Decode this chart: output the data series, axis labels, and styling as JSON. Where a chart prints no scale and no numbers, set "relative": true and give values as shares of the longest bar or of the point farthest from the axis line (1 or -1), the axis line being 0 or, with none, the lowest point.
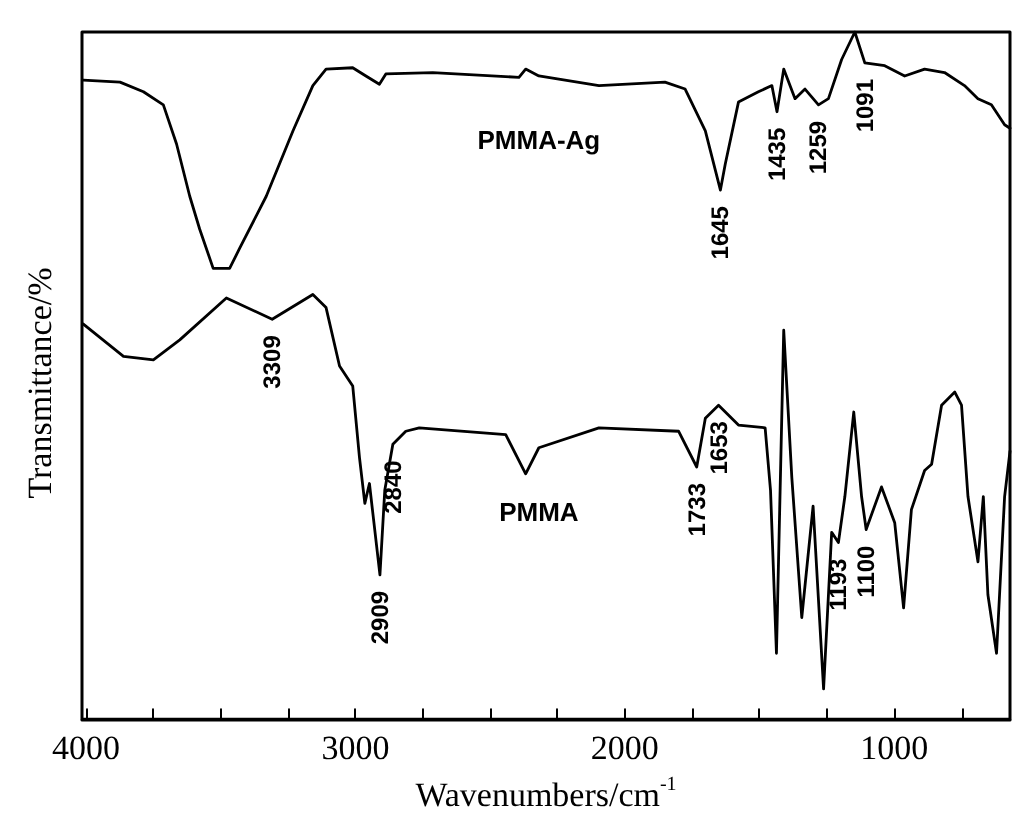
{
  "chart_data": {
    "type": "line",
    "relative": true,
    "xlabel": "Wavenumbers/cm$^{-1}$",
    "ylabel": "Transmittance/%",
    "xlim": [
      4015,
      570
    ],
    "xticks": [
      4000,
      {
        "value": 3750,
        "label": null
      },
      {
        "value": 3500,
        "label": null
      },
      {
        "value": 3250,
        "label": null
      },
      3000,
      {
        "value": 2750,
        "label": null
      },
      {
        "value": 2500,
        "label": null
      },
      {
        "value": 2250,
        "label": null
      },
      2000,
      {
        "value": 1750,
        "label": null
      },
      {
        "value": 1500,
        "label": null
      },
      {
        "value": 1250,
        "label": null
      },
      1000,
      {
        "value": 750,
        "label": null
      }
    ],
    "grid": false,
    "legend": false,
    "marker": "none",
    "line_style": "solid",
    "series": [
      {
        "name": "PMMA-Ag",
        "color": "#000000",
        "x": [
          4010,
          3874,
          3787,
          3713,
          3664,
          3615,
          3578,
          3528,
          3467,
          3430,
          3331,
          3232,
          3158,
          3109,
          3010,
          2961,
          2911,
          2887,
          2713,
          2393,
          2368,
          2319,
          2096,
          1851,
          1776,
          1701,
          1645,
          1627,
          1578,
          1504,
          1454,
          1435,
          1410,
          1368,
          1331,
          1281,
          1244,
          1195,
          1146,
          1109,
          1035,
          961,
          887,
          813,
          739,
          689,
          639,
          590,
          570
        ],
        "values": [
          0.93,
          0.927,
          0.913,
          0.894,
          0.837,
          0.761,
          0.713,
          0.656,
          0.656,
          0.685,
          0.761,
          0.856,
          0.922,
          0.946,
          0.948,
          0.936,
          0.924,
          0.939,
          0.941,
          0.934,
          0.946,
          0.936,
          0.922,
          0.927,
          0.917,
          0.856,
          0.77,
          0.808,
          0.898,
          0.913,
          0.922,
          0.884,
          0.946,
          0.903,
          0.917,
          0.894,
          0.903,
          0.96,
          1.0,
          0.955,
          0.951,
          0.936,
          0.946,
          0.941,
          0.922,
          0.903,
          0.894,
          0.865,
          0.86
        ]
      },
      {
        "name": "PMMA",
        "color": "#000000",
        "x": [
          4010,
          3861,
          3750,
          3652,
          3479,
          3309,
          3158,
          3109,
          3059,
          3010,
          2985,
          2965,
          2948,
          2909,
          2891,
          2861,
          2813,
          2763,
          2442,
          2368,
          2319,
          2096,
          1800,
          1733,
          1701,
          1652,
          1578,
          1479,
          1459,
          1437,
          1410,
          1380,
          1343,
          1301,
          1262,
          1232,
          1207,
          1183,
          1150,
          1121,
          1104,
          1047,
          998,
          965,
          936,
          887,
          861,
          824,
          775,
          750,
          726,
          689,
          669,
          652,
          620,
          590,
          570
        ],
        "values": [
          0.575,
          0.528,
          0.523,
          0.552,
          0.613,
          0.582,
          0.618,
          0.599,
          0.514,
          0.485,
          0.381,
          0.314,
          0.343,
          0.21,
          0.333,
          0.4,
          0.419,
          0.424,
          0.414,
          0.357,
          0.395,
          0.424,
          0.419,
          0.367,
          0.438,
          0.457,
          0.428,
          0.424,
          0.333,
          0.096,
          0.566,
          0.352,
          0.148,
          0.31,
          0.044,
          0.272,
          0.257,
          0.324,
          0.447,
          0.324,
          0.276,
          0.338,
          0.286,
          0.162,
          0.305,
          0.362,
          0.371,
          0.457,
          0.476,
          0.457,
          0.324,
          0.229,
          0.324,
          0.181,
          0.096,
          0.324,
          0.39
        ]
      }
    ],
    "annotations": [
      {
        "text": "1645",
        "x": 1645,
        "y": 0.77
      },
      {
        "text": "1435",
        "x": 1435,
        "y": 0.884
      },
      {
        "text": "1259",
        "x": 1281,
        "y": 0.894
      },
      {
        "text": "1091",
        "x": 1109,
        "y": 0.955
      },
      {
        "text": "3309",
        "x": 3309,
        "y": 0.582
      },
      {
        "text": "2909",
        "x": 2909,
        "y": 0.21
      },
      {
        "text": "2840",
        "x": 2861,
        "y": 0.4
      },
      {
        "text": "1733",
        "x": 1733,
        "y": 0.367
      },
      {
        "text": "1653",
        "x": 1652,
        "y": 0.457
      },
      {
        "text": "1193",
        "x": 1207,
        "y": 0.257
      },
      {
        "text": "1100",
        "x": 1104,
        "y": 0.276
      }
    ]
  }
}
